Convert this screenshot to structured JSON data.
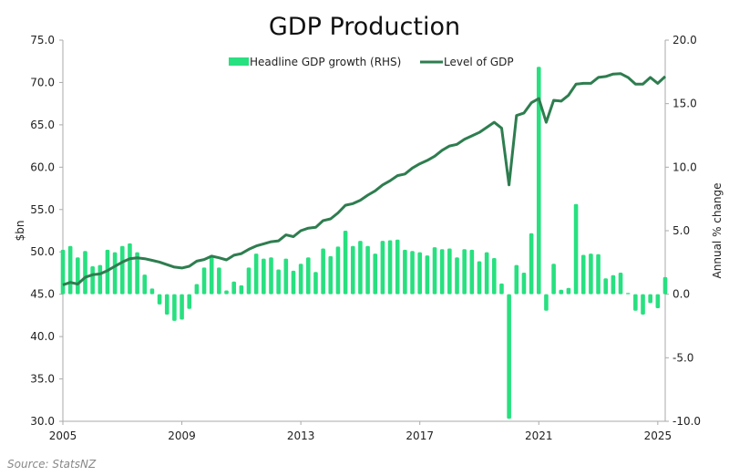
{
  "chart_data": {
    "type": "bar+line",
    "title": "GDP Production",
    "xlabel": "",
    "ylabel_left": "$bn",
    "ylabel_right": "Annual % change",
    "x_ticks": [
      "2005",
      "2009",
      "2013",
      "2017",
      "2021",
      "2025"
    ],
    "y_left_ticks": [
      "75.0",
      "70.0",
      "65.0",
      "60.0",
      "55.0",
      "50.0",
      "45.0",
      "40.0",
      "35.0",
      "30.0"
    ],
    "y_right_ticks": [
      "20.0",
      "15.0",
      "10.0",
      "5.0",
      "0.0",
      "-5.0",
      "-10.0"
    ],
    "ylim_left": [
      30,
      75
    ],
    "ylim_right": [
      -10,
      20
    ],
    "xlim": [
      2005,
      2025.25
    ],
    "x_start": 2005,
    "x_step": 0.25,
    "grid": false,
    "legend_position": "top-center",
    "series": [
      {
        "name": "Headline GDP growth (RHS)",
        "type": "bar",
        "axis": "right",
        "color": "#27e07f",
        "values": [
          3.5,
          3.8,
          2.9,
          3.4,
          2.2,
          2.3,
          3.5,
          3.3,
          3.8,
          4.0,
          3.3,
          1.55,
          0.45,
          -0.8,
          -1.6,
          -2.1,
          -2.0,
          -1.15,
          0.8,
          2.1,
          2.9,
          2.1,
          0.3,
          1.0,
          0.7,
          2.1,
          3.2,
          2.8,
          2.9,
          1.95,
          2.8,
          1.85,
          2.4,
          2.9,
          1.75,
          3.6,
          3.0,
          3.75,
          5.0,
          3.8,
          4.2,
          3.8,
          3.2,
          4.2,
          4.25,
          4.3,
          3.5,
          3.4,
          3.3,
          3.05,
          3.7,
          3.55,
          3.6,
          2.9,
          3.55,
          3.5,
          2.6,
          3.3,
          2.85,
          0.85,
          -9.8,
          2.3,
          1.7,
          4.8,
          17.9,
          -1.3,
          2.4,
          0.35,
          0.5,
          7.1,
          3.1,
          3.2,
          3.15,
          1.25,
          1.5,
          1.7,
          0.1,
          -1.3,
          -1.6,
          -0.7,
          -1.1,
          1.35
        ]
      },
      {
        "name": "Level of GDP",
        "type": "line",
        "axis": "left",
        "color": "#2e7d4f",
        "values": [
          46.1,
          46.4,
          46.2,
          47.0,
          47.3,
          47.4,
          47.8,
          48.3,
          48.8,
          49.2,
          49.3,
          49.2,
          49.0,
          48.8,
          48.5,
          48.2,
          48.1,
          48.3,
          48.9,
          49.1,
          49.5,
          49.3,
          49.05,
          49.6,
          49.8,
          50.3,
          50.7,
          50.95,
          51.2,
          51.3,
          52.0,
          51.8,
          52.5,
          52.8,
          52.9,
          53.7,
          53.9,
          54.6,
          55.5,
          55.7,
          56.1,
          56.7,
          57.2,
          57.9,
          58.4,
          59.0,
          59.2,
          59.9,
          60.4,
          60.8,
          61.3,
          62.0,
          62.5,
          62.7,
          63.3,
          63.7,
          64.1,
          64.7,
          65.3,
          64.6,
          57.9,
          66.1,
          66.4,
          67.6,
          68.1,
          65.3,
          67.9,
          67.8,
          68.5,
          69.8,
          69.9,
          69.9,
          70.6,
          70.7,
          71.0,
          71.05,
          70.6,
          69.8,
          69.8,
          70.6,
          69.9,
          70.7
        ]
      }
    ],
    "source": "Source: StatsNZ"
  }
}
